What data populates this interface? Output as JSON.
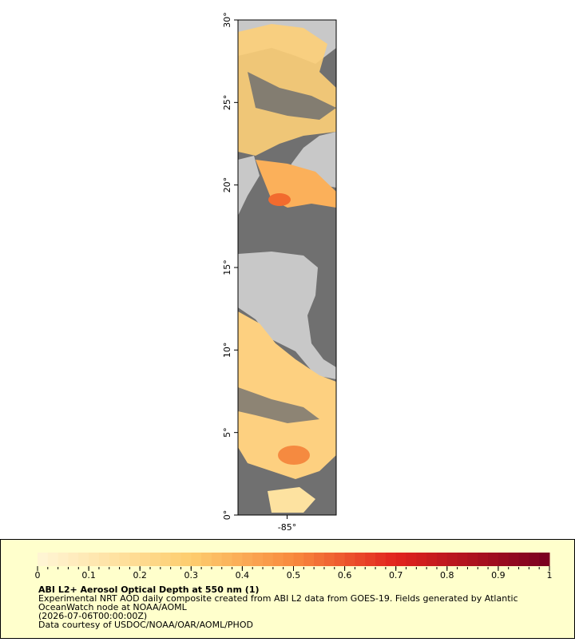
{
  "map": {
    "xlim": [
      -88,
      -82
    ],
    "ylim": [
      0,
      30
    ],
    "lat_ticks": [
      {
        "value": 30,
        "label": "30°"
      },
      {
        "value": 25,
        "label": "25°"
      },
      {
        "value": 20,
        "label": "20°"
      },
      {
        "value": 15,
        "label": "15°"
      },
      {
        "value": 10,
        "label": "10°"
      },
      {
        "value": 5,
        "label": "5°"
      },
      {
        "value": 0,
        "label": "0°"
      }
    ],
    "lon_ticks": [
      {
        "value": -85,
        "label": "-85°"
      }
    ]
  },
  "colorbar": {
    "lim": [
      0,
      1
    ],
    "ticks": [
      0,
      0.1,
      0.2,
      0.3,
      0.4,
      0.5,
      0.6,
      0.7,
      0.8,
      0.9,
      1
    ]
  },
  "legend": {
    "title": "ABI L2+ Aerosol Optical Depth at 550 nm (1)",
    "lines": [
      "Experimental NRT AOD daily composite created from ABI L2 data from GOES-19. Fields generated by Atlantic",
      "OceanWatch node at NOAA/AOML",
      "(2026-07-06T00:00:00Z)",
      "Data courtesy of USDOC/NOAA/OAR/AOML/PHOD"
    ]
  }
}
